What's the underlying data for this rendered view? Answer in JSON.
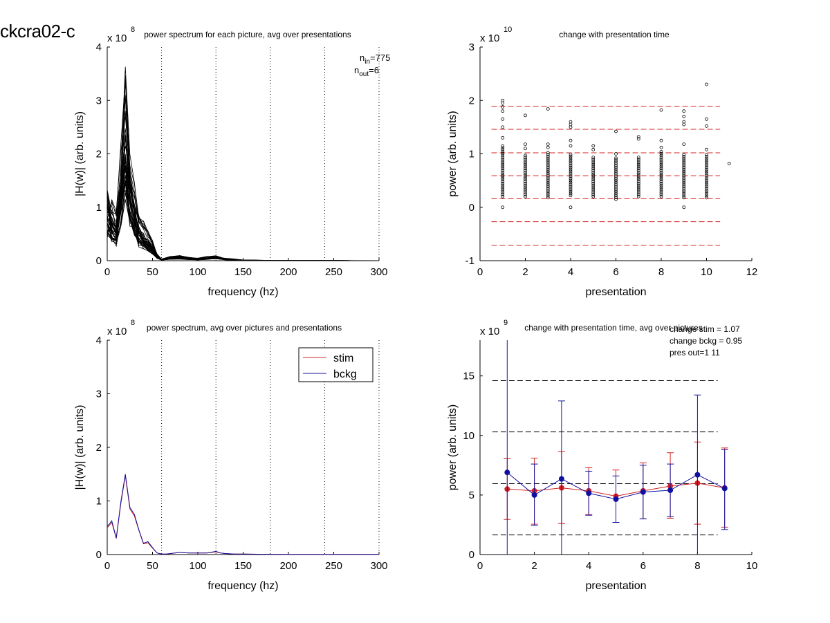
{
  "page": {
    "title": "ckcra02-c"
  },
  "chart_data": [
    {
      "id": "p1",
      "type": "line",
      "title": "power spectrum for each picture, avg over presentations",
      "xlabel": "frequency (hz)",
      "ylabel": "|H(w)| (arb. units)",
      "xlim": [
        0,
        300
      ],
      "ylim": [
        0,
        4
      ],
      "xticks": [
        0,
        50,
        100,
        150,
        200,
        250,
        300
      ],
      "yticks": [
        0,
        1,
        2,
        3,
        4
      ],
      "exponent_base": "x 10",
      "exponent_power": "8",
      "vlines": [
        60,
        120,
        180,
        240,
        300
      ],
      "annotation": {
        "n_in_label": "n",
        "n_in_sub": "in",
        "n_in_value": "=775",
        "n_out_label": "n",
        "n_out_sub": "out",
        "n_out_value": "=6"
      },
      "series_color": "#000000",
      "series_count": 40,
      "representative_x": [
        0,
        5,
        10,
        15,
        20,
        25,
        30,
        35,
        40,
        45,
        50,
        55,
        60,
        70,
        80,
        90,
        100,
        110,
        120,
        130,
        140,
        150,
        175,
        200,
        250,
        300
      ],
      "representative_y": [
        0.9,
        0.7,
        0.55,
        1.3,
        2.2,
        1.3,
        0.9,
        0.55,
        0.45,
        0.35,
        0.25,
        0.08,
        0.02,
        0.05,
        0.06,
        0.04,
        0.03,
        0.05,
        0.06,
        0.03,
        0.02,
        0.01,
        0.005,
        0.004,
        0.002,
        0.001
      ],
      "peak_value": 3.37
    },
    {
      "id": "p2",
      "type": "scatter",
      "title": "change with presentation time",
      "xlabel": "presentation",
      "ylabel": "power (arb. units)",
      "xlim": [
        0,
        12
      ],
      "ylim": [
        -1,
        3
      ],
      "xticks": [
        0,
        2,
        4,
        6,
        8,
        10,
        12
      ],
      "yticks": [
        -1,
        0,
        1,
        2,
        3
      ],
      "exponent_base": "x 10",
      "exponent_power": "10",
      "hlines": [
        1.89,
        1.46,
        1.02,
        0.59,
        0.16,
        -0.27,
        -0.71
      ],
      "hline_color": "#d42020",
      "hline_xrange": [
        0.2,
        10.6
      ],
      "marker": "circle-open",
      "presentations": [
        {
          "x": 1,
          "min": 0.2,
          "max": 1.15,
          "outliers": [
            2.0,
            1.95,
            1.88,
            1.8,
            1.65,
            1.5,
            1.3,
            0.0
          ]
        },
        {
          "x": 2,
          "min": 0.2,
          "max": 1.0,
          "outliers": [
            1.72,
            1.18,
            1.1
          ]
        },
        {
          "x": 3,
          "min": 0.18,
          "max": 1.05,
          "outliers": [
            1.84,
            1.18,
            1.12
          ]
        },
        {
          "x": 4,
          "min": 0.22,
          "max": 1.0,
          "outliers": [
            1.6,
            1.55,
            1.5,
            1.25,
            1.15,
            0.0
          ]
        },
        {
          "x": 5,
          "min": 0.2,
          "max": 0.95,
          "outliers": [
            1.15,
            1.08
          ]
        },
        {
          "x": 6,
          "min": 0.15,
          "max": 0.95,
          "outliers": [
            1.42,
            1.0
          ]
        },
        {
          "x": 7,
          "min": 0.2,
          "max": 0.95,
          "outliers": [
            1.32,
            1.28
          ]
        },
        {
          "x": 8,
          "min": 0.2,
          "max": 1.05,
          "outliers": [
            1.82,
            1.25,
            1.12
          ]
        },
        {
          "x": 9,
          "min": 0.18,
          "max": 1.0,
          "outliers": [
            1.8,
            1.7,
            1.6,
            1.55,
            1.18,
            0.0
          ]
        },
        {
          "x": 10,
          "min": 0.18,
          "max": 1.0,
          "outliers": [
            2.3,
            1.65,
            1.52,
            1.08
          ]
        },
        {
          "x": 11,
          "min": 0.82,
          "max": 0.82,
          "outliers": []
        }
      ]
    },
    {
      "id": "p3",
      "type": "line",
      "title": "power spectrum, avg over pictures and presentations",
      "xlabel": "frequency (hz)",
      "ylabel": "|H(w)| (arb. units)",
      "xlim": [
        0,
        300
      ],
      "ylim": [
        0,
        4
      ],
      "xticks": [
        0,
        50,
        100,
        150,
        200,
        250,
        300
      ],
      "yticks": [
        0,
        1,
        2,
        3,
        4
      ],
      "exponent_base": "x 10",
      "exponent_power": "8",
      "vlines": [
        60,
        120,
        180,
        240,
        300
      ],
      "legend": "top-right",
      "x": [
        0,
        5,
        10,
        15,
        20,
        25,
        30,
        35,
        40,
        45,
        50,
        55,
        60,
        65,
        70,
        80,
        90,
        100,
        110,
        120,
        125,
        130,
        140,
        150,
        175,
        200,
        250,
        300
      ],
      "series": [
        {
          "name": "stim",
          "color": "#d42020",
          "values": [
            0.5,
            0.6,
            0.3,
            0.95,
            1.47,
            0.85,
            0.72,
            0.45,
            0.2,
            0.22,
            0.12,
            0.03,
            0.01,
            0.01,
            0.02,
            0.04,
            0.03,
            0.03,
            0.03,
            0.05,
            0.03,
            0.02,
            0.01,
            0.01,
            0.005,
            0.004,
            0.003,
            0.002
          ]
        },
        {
          "name": "bckg",
          "color": "#1010a0",
          "values": [
            0.52,
            0.63,
            0.31,
            0.98,
            1.5,
            0.88,
            0.75,
            0.46,
            0.21,
            0.24,
            0.13,
            0.03,
            0.01,
            0.01,
            0.02,
            0.04,
            0.03,
            0.03,
            0.03,
            0.06,
            0.03,
            0.02,
            0.01,
            0.01,
            0.005,
            0.004,
            0.003,
            0.002
          ]
        }
      ]
    },
    {
      "id": "p4",
      "type": "line",
      "title": "change with presentation time, avg over pictures",
      "xlabel": "presentation",
      "ylabel": "power (arb. units)",
      "xlim": [
        0,
        10
      ],
      "ylim": [
        0,
        18
      ],
      "xticks": [
        0,
        2,
        4,
        6,
        8,
        10
      ],
      "yticks": [
        0,
        5,
        10,
        15
      ],
      "exponent_base": "x 10",
      "exponent_power": "9",
      "hlines": [
        14.6,
        10.3,
        5.95,
        1.65
      ],
      "hline_color": "#000000",
      "hline_xrange": [
        0.2,
        9.0
      ],
      "annotations": [
        "change stim = 1.07",
        "change bckg = 0.95",
        "pres out=1 11"
      ],
      "x": [
        1,
        2,
        3,
        4,
        5,
        6,
        7,
        8,
        9
      ],
      "series": [
        {
          "name": "stim",
          "color": "#d42020",
          "values": [
            5.5,
            5.35,
            5.6,
            5.35,
            4.9,
            5.35,
            5.75,
            6.0,
            5.6
          ],
          "err_low": [
            2.95,
            2.55,
            2.6,
            3.35,
            2.7,
            3.0,
            3.05,
            2.55,
            2.3
          ],
          "err_high": [
            8.05,
            8.1,
            8.65,
            7.3,
            7.1,
            7.7,
            8.55,
            9.45,
            8.95
          ]
        },
        {
          "name": "bckg",
          "color": "#1010a0",
          "values": [
            6.9,
            5.0,
            6.35,
            5.15,
            4.65,
            5.25,
            5.4,
            6.7,
            5.55
          ],
          "err_low": [
            0,
            2.45,
            0,
            3.3,
            2.7,
            3.0,
            3.2,
            0,
            2.1
          ],
          "err_high": [
            18.2,
            7.6,
            12.9,
            7.0,
            6.6,
            7.5,
            7.6,
            13.4,
            8.8
          ]
        }
      ]
    }
  ]
}
